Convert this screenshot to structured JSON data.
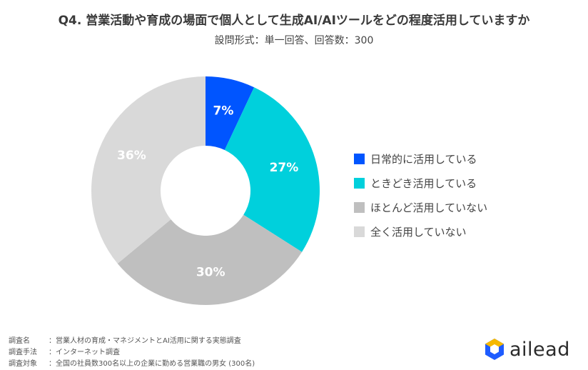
{
  "header": {
    "title": "Q4. 営業活動や育成の場面で個人として生成AI/AIツールをどの程度活用していますか",
    "subtitle": "設問形式：単一回答、回答数：300"
  },
  "chart_data": {
    "type": "pie",
    "donut": true,
    "legend_position": "right",
    "categories": [
      "日常的に活用している",
      "ときどき活用している",
      "ほとんど活用していない",
      "全く活用していない"
    ],
    "values": [
      7,
      27,
      30,
      36
    ],
    "labels": [
      "7%",
      "27%",
      "30%",
      "36%"
    ],
    "colors": [
      "#0055FF",
      "#00D0DC",
      "#BFBFBF",
      "#D9D9D9"
    ]
  },
  "notes": [
    {
      "label": "調査名",
      "sep": "：",
      "text": "営業人材の育成・マネジメントとAI活用に関する実態調査"
    },
    {
      "label": "調査手法",
      "sep": "：",
      "text": "インターネット調査"
    },
    {
      "label": "調査対象",
      "sep": "：",
      "text": "全国の社員数300名以上の企業に勤める営業職の男女 (300名)"
    }
  ],
  "brand": {
    "name": "ailead",
    "icon": "hexagon-logo-icon"
  }
}
